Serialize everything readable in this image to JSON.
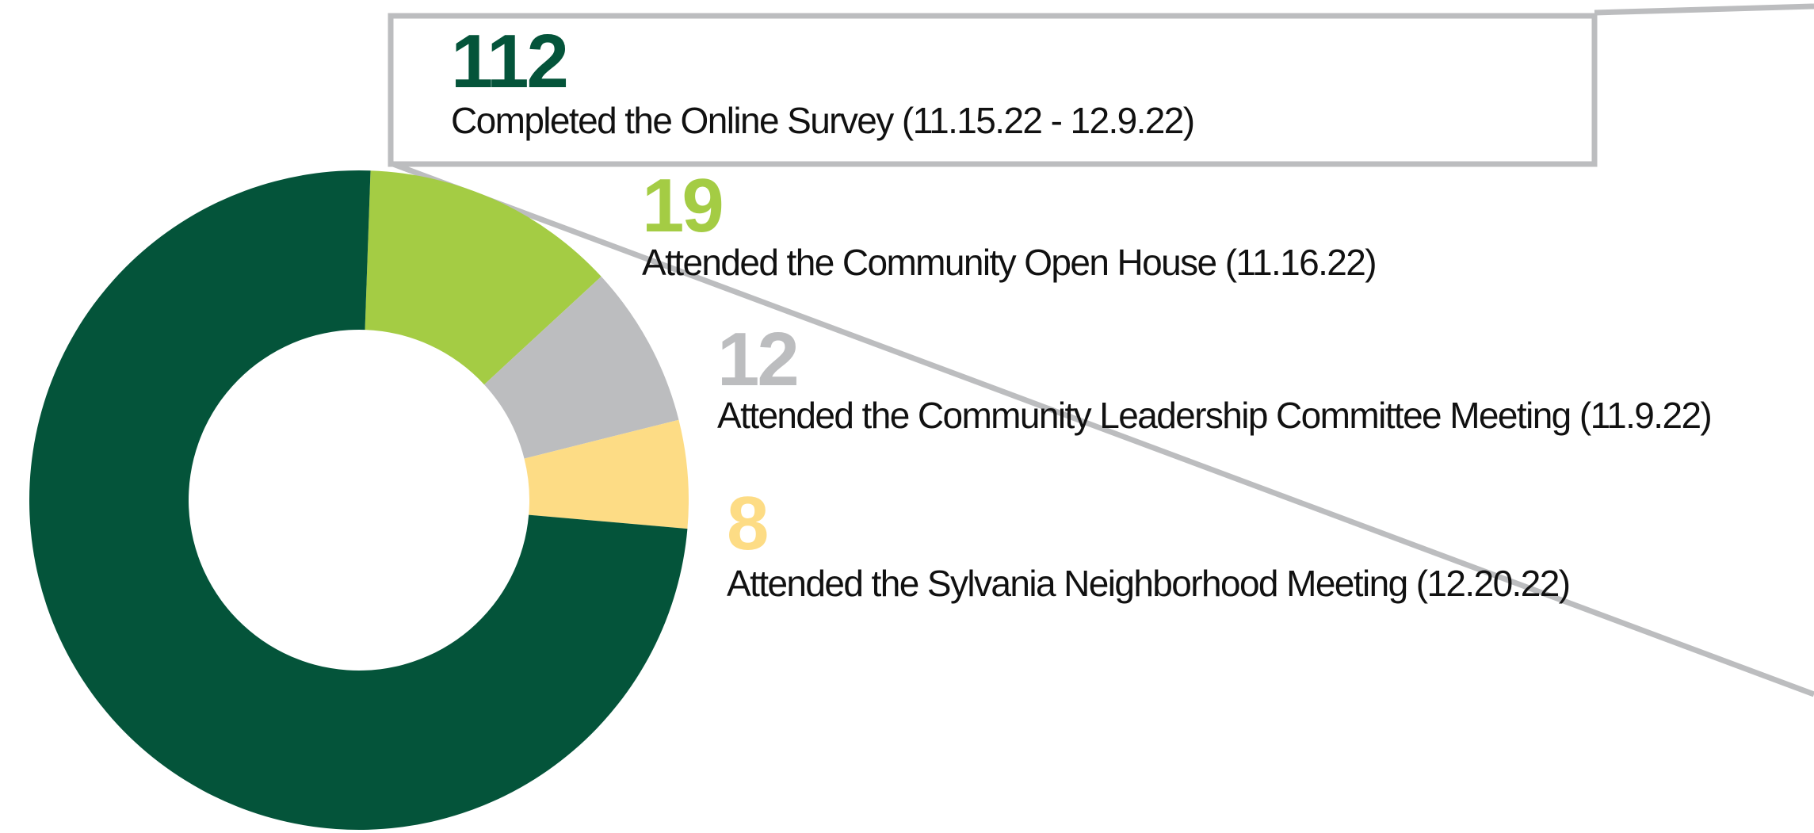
{
  "chart_data": {
    "type": "pie",
    "categories": [
      "Completed the Online Survey (11.15.22 - 12.9.22)",
      "Attended the Community Open House (11.16.22)",
      "Attended the Community Leadership Committee Meeting (11.9.22)",
      "Attended the Sylvania Neighborhood Meeting (12.20.22)"
    ],
    "values": [
      112,
      19,
      12,
      8
    ],
    "colors": [
      "#04543a",
      "#a4cc44",
      "#bcbdbf",
      "#fddc85"
    ],
    "donut": true
  }
}
